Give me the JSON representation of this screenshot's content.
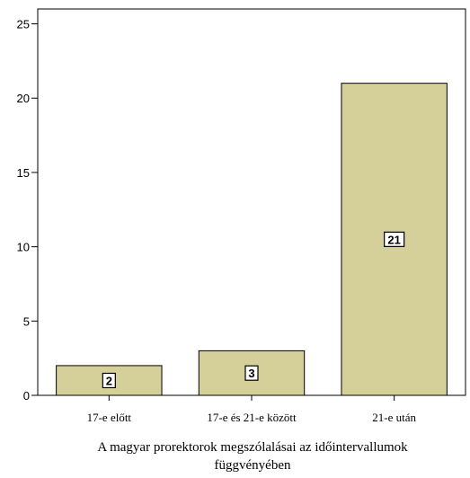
{
  "chart_data": {
    "type": "bar",
    "categories": [
      "17-e előtt",
      "17-e és 21-e között",
      "21-e után"
    ],
    "values": [
      2,
      3,
      21
    ],
    "data_labels": [
      "2",
      "3",
      "21"
    ],
    "title": "",
    "xlabel_lines": [
      "A magyar prorektorok megszólalásai az időintervallumok",
      "függvényében"
    ],
    "ylabel": "",
    "ylim": [
      0,
      26
    ],
    "yticks": [
      0,
      5,
      10,
      15,
      20,
      25
    ],
    "grid": false,
    "bar_color": "#d5d09a",
    "bar_outline": "#000000"
  }
}
